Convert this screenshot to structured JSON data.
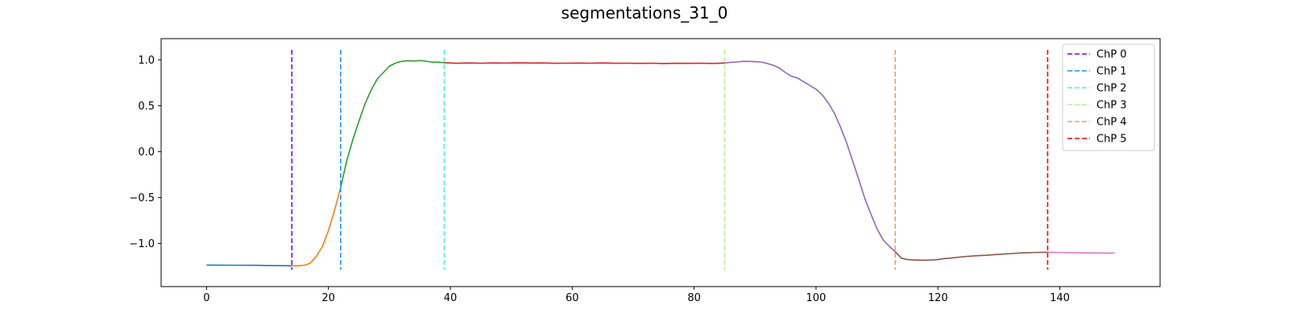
{
  "chart_data": {
    "type": "line",
    "title": "segmentations_31_0",
    "xlabel": "",
    "ylabel": "",
    "xlim": [
      -7.45,
      156.45
    ],
    "ylim": [
      -1.4694,
      1.2303
    ],
    "x_ticks": [
      0,
      20,
      40,
      60,
      80,
      100,
      120,
      140
    ],
    "y_ticks": [
      -1.0,
      -0.5,
      0.0,
      0.5,
      1.0
    ],
    "x_tick_labels": [
      "0",
      "20",
      "40",
      "60",
      "80",
      "100",
      "120",
      "140"
    ],
    "y_tick_labels": [
      "−1.0",
      "−0.5",
      "0.0",
      "0.5",
      "1.0"
    ],
    "grid": false,
    "legend_position": "top-right",
    "segments": [
      {
        "color": "#1f77b4",
        "x": [
          0,
          2,
          4,
          6,
          8,
          10,
          12,
          14
        ],
        "y": [
          -1.235,
          -1.236,
          -1.237,
          -1.237,
          -1.238,
          -1.24,
          -1.241,
          -1.243
        ]
      },
      {
        "color": "#ff7f0e",
        "x": [
          14,
          15,
          16,
          17,
          18,
          19,
          20,
          21,
          22
        ],
        "y": [
          -1.243,
          -1.243,
          -1.238,
          -1.215,
          -1.14,
          -1.035,
          -0.86,
          -0.64,
          -0.39
        ]
      },
      {
        "color": "#2ca02c",
        "x": [
          22,
          23,
          24,
          25,
          26,
          27,
          28,
          29,
          30,
          31,
          32,
          33,
          34,
          35,
          36,
          37,
          38,
          39
        ],
        "y": [
          -0.39,
          -0.1,
          0.13,
          0.33,
          0.52,
          0.67,
          0.79,
          0.86,
          0.93,
          0.965,
          0.982,
          0.99,
          0.986,
          0.992,
          0.985,
          0.974,
          0.975,
          0.968
        ]
      },
      {
        "color": "#d62728",
        "x": [
          39,
          41,
          43,
          45,
          47,
          49,
          51,
          53,
          55,
          57,
          59,
          61,
          63,
          65,
          67,
          69,
          71,
          73,
          75,
          77,
          79,
          81,
          83,
          85
        ],
        "y": [
          0.968,
          0.962,
          0.966,
          0.963,
          0.966,
          0.964,
          0.967,
          0.965,
          0.966,
          0.962,
          0.963,
          0.965,
          0.963,
          0.966,
          0.962,
          0.963,
          0.961,
          0.963,
          0.959,
          0.962,
          0.961,
          0.963,
          0.96,
          0.965
        ]
      },
      {
        "color": "#9467bd",
        "x": [
          85,
          86,
          87,
          88,
          89,
          90,
          91,
          92,
          93,
          94,
          95,
          96,
          97,
          98,
          99,
          100,
          101,
          102,
          103,
          104,
          105,
          106,
          107,
          108,
          109,
          110,
          111,
          112,
          113
        ],
        "y": [
          0.965,
          0.972,
          0.976,
          0.983,
          0.982,
          0.98,
          0.975,
          0.96,
          0.94,
          0.91,
          0.86,
          0.82,
          0.8,
          0.76,
          0.72,
          0.68,
          0.62,
          0.53,
          0.42,
          0.27,
          0.1,
          -0.1,
          -0.3,
          -0.51,
          -0.68,
          -0.84,
          -0.96,
          -1.03,
          -1.09
        ]
      },
      {
        "color": "#8c564b",
        "x": [
          113,
          114,
          115,
          116,
          117,
          118,
          119,
          120,
          121,
          122,
          124,
          126,
          128,
          130,
          132,
          134,
          136,
          138
        ],
        "y": [
          -1.09,
          -1.16,
          -1.175,
          -1.18,
          -1.182,
          -1.183,
          -1.18,
          -1.175,
          -1.165,
          -1.16,
          -1.145,
          -1.135,
          -1.128,
          -1.118,
          -1.11,
          -1.102,
          -1.098,
          -1.095
        ]
      },
      {
        "color": "#e377c2",
        "x": [
          138,
          140,
          142,
          144,
          146,
          148,
          149
        ],
        "y": [
          -1.095,
          -1.098,
          -1.1,
          -1.103,
          -1.103,
          -1.105,
          -1.105
        ]
      }
    ],
    "changepoints": [
      {
        "name": "ChP 0",
        "x": 14,
        "color": "#7f00ff"
      },
      {
        "name": "ChP 1",
        "x": 22,
        "color": "#1996f3"
      },
      {
        "name": "ChP 2",
        "x": 39,
        "color": "#4df3ce"
      },
      {
        "name": "ChP 3",
        "x": 85,
        "color": "#b2f396"
      },
      {
        "name": "ChP 4",
        "x": 113,
        "color": "#ff964f"
      },
      {
        "name": "ChP 5",
        "x": 138,
        "color": "#ff0000"
      }
    ]
  }
}
